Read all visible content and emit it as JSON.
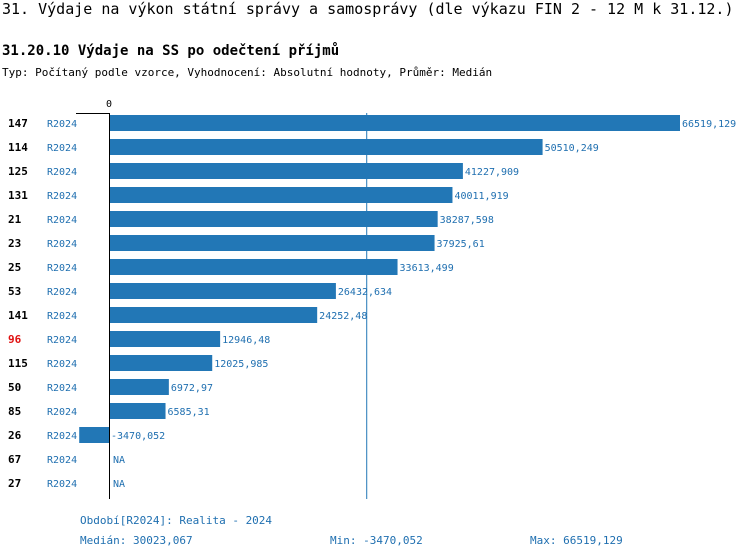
{
  "page": {
    "title": "31. Výdaje na výkon státní správy a samosprávy (dle výkazu FIN 2 - 12 M k 31.12.)",
    "subtitle": "31.20.10 Výdaje na SS po odečtení příjmů",
    "meta": "Typ: Počítaný podle vzorce, Vyhodnocení: Absolutní hodnoty, Průměr: Medián"
  },
  "footer": {
    "period": "Období[R2024]: Realita - 2024",
    "median": "Medián: 30023,067",
    "min": "Min: -3470,052",
    "max": "Max: 66519,129"
  },
  "colors": {
    "bar": "#2277b6",
    "label": "#1f6fb0",
    "highlight": "#e01010",
    "axis": "#000000",
    "median_line": "#2277b6"
  },
  "chart_data": {
    "type": "bar",
    "orientation": "horizontal",
    "zero_label": "0",
    "median": 30023.067,
    "xlim": [
      -3470.052,
      66519.129
    ],
    "rows": [
      {
        "id": "147",
        "period": "R2024",
        "value": 66519.129,
        "label": "66519,129",
        "highlight": false
      },
      {
        "id": "114",
        "period": "R2024",
        "value": 50510.249,
        "label": "50510,249",
        "highlight": false
      },
      {
        "id": "125",
        "period": "R2024",
        "value": 41227.909,
        "label": "41227,909",
        "highlight": false
      },
      {
        "id": "131",
        "period": "R2024",
        "value": 40011.919,
        "label": "40011,919",
        "highlight": false
      },
      {
        "id": "21",
        "period": "R2024",
        "value": 38287.598,
        "label": "38287,598",
        "highlight": false
      },
      {
        "id": "23",
        "period": "R2024",
        "value": 37925.61,
        "label": "37925,61",
        "highlight": false
      },
      {
        "id": "25",
        "period": "R2024",
        "value": 33613.499,
        "label": "33613,499",
        "highlight": false
      },
      {
        "id": "53",
        "period": "R2024",
        "value": 26432.634,
        "label": "26432,634",
        "highlight": false
      },
      {
        "id": "141",
        "period": "R2024",
        "value": 24252.48,
        "label": "24252,48",
        "highlight": false
      },
      {
        "id": "96",
        "period": "R2024",
        "value": 12946.48,
        "label": "12946,48",
        "highlight": true
      },
      {
        "id": "115",
        "period": "R2024",
        "value": 12025.985,
        "label": "12025,985",
        "highlight": false
      },
      {
        "id": "50",
        "period": "R2024",
        "value": 6972.97,
        "label": "6972,97",
        "highlight": false
      },
      {
        "id": "85",
        "period": "R2024",
        "value": 6585.31,
        "label": "6585,31",
        "highlight": false
      },
      {
        "id": "26",
        "period": "R2024",
        "value": -3470.052,
        "label": "-3470,052",
        "highlight": false
      },
      {
        "id": "67",
        "period": "R2024",
        "value": null,
        "label": "NA",
        "highlight": false
      },
      {
        "id": "27",
        "period": "R2024",
        "value": null,
        "label": "NA",
        "highlight": false
      }
    ]
  }
}
